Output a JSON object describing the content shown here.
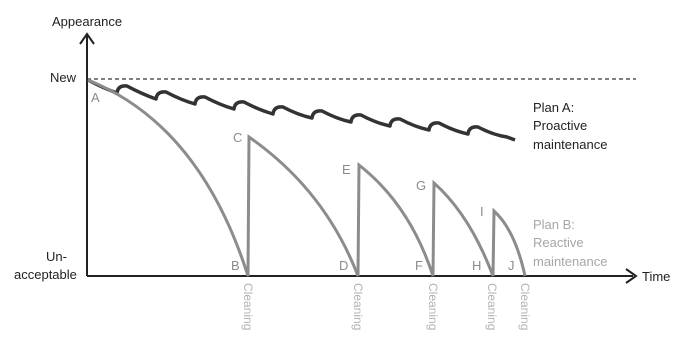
{
  "axes": {
    "y_label": "Appearance",
    "x_label": "Time",
    "y_top_label": "New",
    "y_bottom_label_line1": "Un-",
    "y_bottom_label_line2": "acceptable"
  },
  "plan_a": {
    "line1": "Plan A:",
    "line2": "Proactive",
    "line3": "maintenance",
    "color": "#333333"
  },
  "plan_b": {
    "line1": "Plan B:",
    "line2": "Reactive",
    "line3": "maintenance",
    "color": "#8c8c8c"
  },
  "points": [
    "A",
    "B",
    "C",
    "D",
    "E",
    "F",
    "G",
    "H",
    "I",
    "J"
  ],
  "cleaning_label": "Cleaning",
  "cleaning_count": 5
}
